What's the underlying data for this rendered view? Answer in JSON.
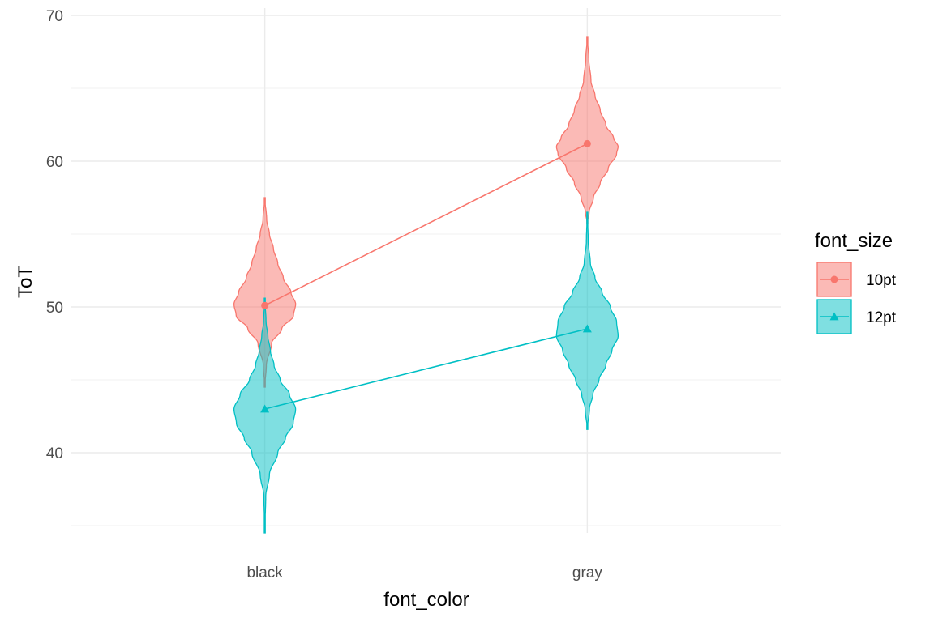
{
  "chart_data": {
    "type": "violin",
    "xlabel": "font_color",
    "ylabel": "ToT",
    "categories": [
      "black",
      "gray"
    ],
    "ylim": [
      34.5,
      70.5
    ],
    "y_ticks": [
      40,
      50,
      60,
      70
    ],
    "grid": true,
    "legend": {
      "title": "font_size",
      "position": "right"
    },
    "series": [
      {
        "name": "10pt",
        "color": "#F8766D",
        "marker": "circle",
        "means": [
          50.1,
          61.2
        ],
        "violins": [
          {
            "category": "black",
            "profile": [
              [
                44.5,
                0.0
              ],
              [
                46.0,
                0.05
              ],
              [
                47.5,
                0.22
              ],
              [
                48.5,
                0.55
              ],
              [
                49.4,
                0.93
              ],
              [
                50.2,
                1.0
              ],
              [
                51.0,
                0.85
              ],
              [
                52.0,
                0.6
              ],
              [
                53.0,
                0.42
              ],
              [
                54.0,
                0.28
              ],
              [
                55.0,
                0.15
              ],
              [
                56.0,
                0.06
              ],
              [
                57.5,
                0.0
              ]
            ]
          },
          {
            "category": "gray",
            "profile": [
              [
                55.7,
                0.0
              ],
              [
                56.5,
                0.06
              ],
              [
                57.5,
                0.2
              ],
              [
                58.5,
                0.42
              ],
              [
                59.5,
                0.68
              ],
              [
                60.5,
                0.95
              ],
              [
                61.0,
                1.0
              ],
              [
                61.6,
                0.85
              ],
              [
                62.5,
                0.6
              ],
              [
                63.5,
                0.42
              ],
              [
                64.5,
                0.25
              ],
              [
                65.5,
                0.12
              ],
              [
                67.0,
                0.05
              ],
              [
                68.5,
                0.0
              ]
            ]
          }
        ]
      },
      {
        "name": "12pt",
        "color": "#00BFC4",
        "marker": "triangle",
        "means": [
          43.0,
          48.5
        ],
        "violins": [
          {
            "category": "black",
            "profile": [
              [
                34.5,
                0.0
              ],
              [
                37.0,
                0.03
              ],
              [
                38.5,
                0.15
              ],
              [
                40.0,
                0.42
              ],
              [
                41.0,
                0.67
              ],
              [
                42.0,
                0.92
              ],
              [
                43.0,
                1.0
              ],
              [
                44.0,
                0.8
              ],
              [
                45.0,
                0.5
              ],
              [
                46.0,
                0.3
              ],
              [
                47.0,
                0.18
              ],
              [
                48.0,
                0.1
              ],
              [
                49.0,
                0.04
              ],
              [
                50.6,
                0.0
              ]
            ]
          },
          {
            "category": "gray",
            "profile": [
              [
                41.6,
                0.0
              ],
              [
                43.0,
                0.07
              ],
              [
                44.0,
                0.18
              ],
              [
                45.0,
                0.38
              ],
              [
                46.0,
                0.6
              ],
              [
                47.0,
                0.8
              ],
              [
                48.0,
                1.0
              ],
              [
                49.0,
                0.95
              ],
              [
                50.0,
                0.75
              ],
              [
                51.0,
                0.48
              ],
              [
                52.0,
                0.25
              ],
              [
                53.0,
                0.1
              ],
              [
                54.5,
                0.03
              ],
              [
                56.5,
                0.0
              ]
            ]
          }
        ]
      }
    ]
  }
}
